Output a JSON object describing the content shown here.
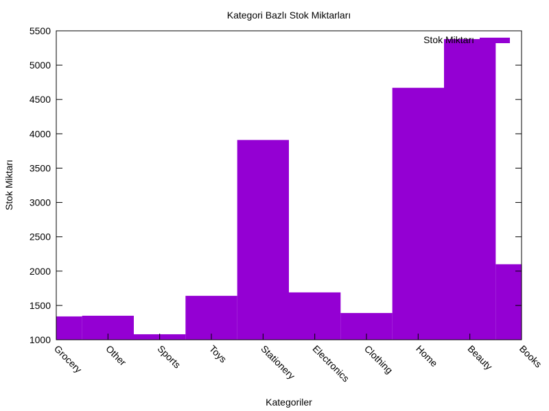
{
  "chart_data": {
    "type": "bar",
    "title": "Kategori Bazlı Stok Miktarları",
    "xlabel": "Kategoriler",
    "ylabel": "Stok Miktarı",
    "categories": [
      "Grocery",
      "Other",
      "Sports",
      "Toys",
      "Stationery",
      "Electronics",
      "Clothing",
      "Home",
      "Beauty",
      "Books"
    ],
    "series": [
      {
        "name": "Stok Miktarı",
        "color": "#9400d3",
        "values": [
          1340,
          1350,
          1080,
          1640,
          3910,
          1690,
          1390,
          4670,
          5380,
          2100
        ]
      }
    ],
    "ylim": [
      1000,
      5500
    ],
    "yticks": [
      1000,
      1500,
      2000,
      2500,
      3000,
      3500,
      4000,
      4500,
      5000,
      5500
    ],
    "grid": false,
    "legend_position": "top-right"
  }
}
